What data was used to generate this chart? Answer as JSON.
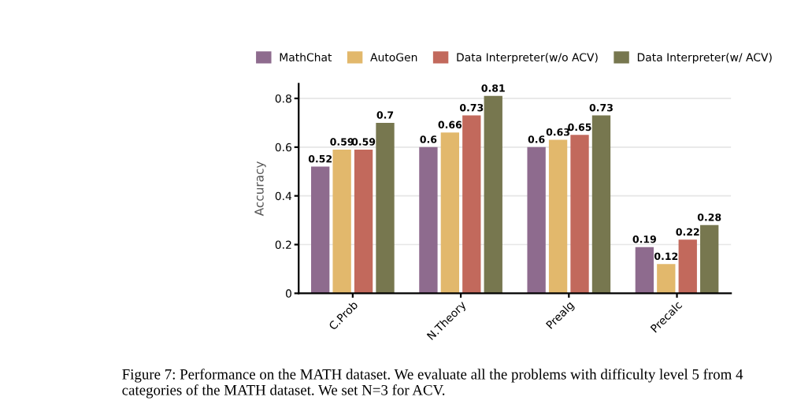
{
  "chart_data": {
    "type": "bar",
    "categories": [
      "C.Prob",
      "N.Theory",
      "Prealg",
      "Precalc"
    ],
    "series": [
      {
        "name": "MathChat",
        "color": "#8e6b8e",
        "values": [
          0.52,
          0.6,
          0.6,
          0.19
        ]
      },
      {
        "name": "AutoGen",
        "color": "#e2b86c",
        "values": [
          0.59,
          0.66,
          0.63,
          0.12
        ]
      },
      {
        "name": "Data Interpreter(w/o ACV)",
        "color": "#c2695c",
        "values": [
          0.59,
          0.73,
          0.65,
          0.22
        ]
      },
      {
        "name": "Data Interpreter(w/ ACV)",
        "color": "#77774f",
        "values": [
          0.7,
          0.81,
          0.73,
          0.28
        ]
      }
    ],
    "ylabel": "Accuracy",
    "ylim": [
      0,
      0.86
    ],
    "yticks": [
      0,
      0.2,
      0.4,
      0.6,
      0.8
    ],
    "grid": "y",
    "legend": "top",
    "data_labels": true,
    "annotations": [
      "Figure 7: Performance on the MATH dataset. We evaluate all the problems with difficulty level 5 from 4 categories of the MATH dataset. We set N=3 for ACV."
    ]
  }
}
